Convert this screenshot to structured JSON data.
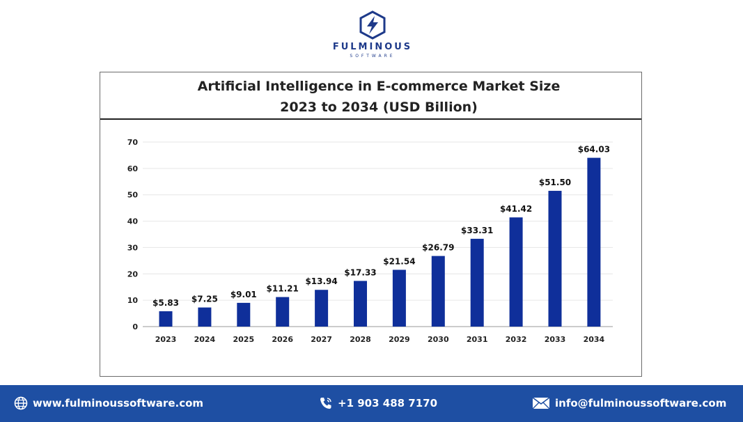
{
  "brand": {
    "name": "FULMINOUS",
    "tagline": "SOFTWARE"
  },
  "chart_data": {
    "type": "bar",
    "title": "Artificial Intelligence in E-commerce Market Size",
    "subtitle": "2023 to 2034 (USD Billion)",
    "categories": [
      "2023",
      "2024",
      "2025",
      "2026",
      "2027",
      "2028",
      "2029",
      "2030",
      "2031",
      "2032",
      "2033",
      "2034"
    ],
    "values": [
      5.83,
      7.25,
      9.01,
      11.21,
      13.94,
      17.33,
      21.54,
      26.79,
      33.31,
      41.42,
      51.5,
      64.03
    ],
    "value_labels": [
      "$5.83",
      "$7.25",
      "$9.01",
      "$11.21",
      "$13.94",
      "$17.33",
      "$21.54",
      "$26.79",
      "$33.31",
      "$41.42",
      "$51.50",
      "$64.03"
    ],
    "yticks": [
      0,
      10,
      20,
      30,
      40,
      50,
      60,
      70
    ],
    "ylim": [
      0,
      70
    ],
    "xlabel": "",
    "ylabel": "",
    "grid": true,
    "bar_color": "#0f2f9a"
  },
  "footer": {
    "website": "www.fulminoussoftware.com",
    "phone": "+1 903 488 7170",
    "email": "info@fulminoussoftware.com",
    "background": "#1e4fa3"
  }
}
